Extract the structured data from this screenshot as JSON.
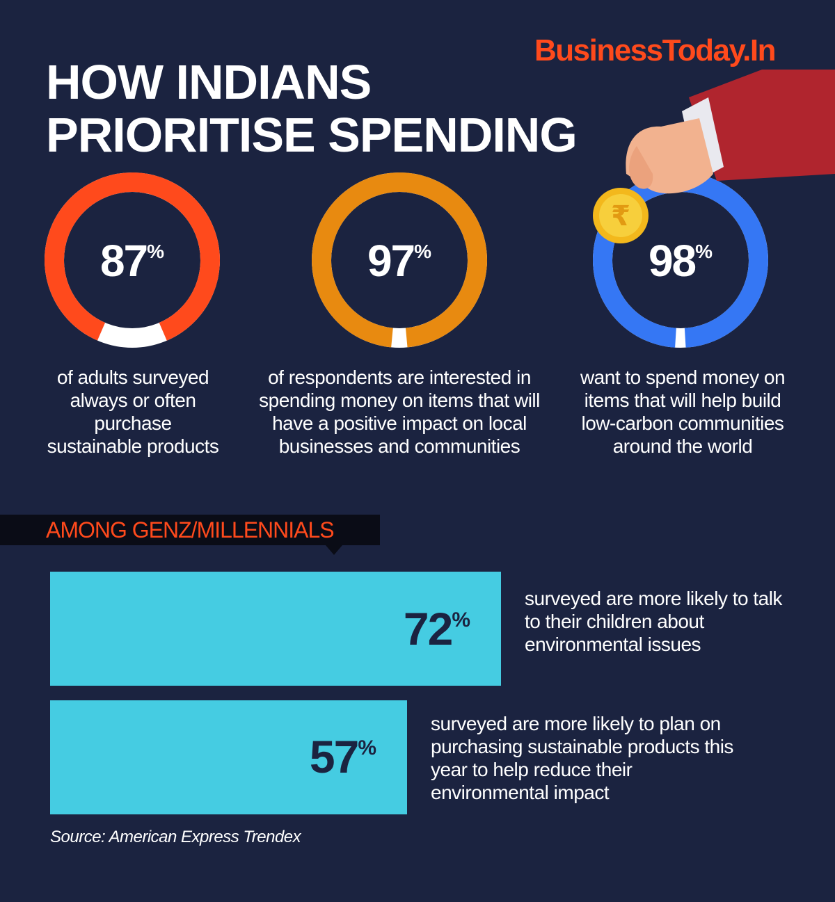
{
  "brand": "BusinessToday.In",
  "title_line1": "HOW INDIANS",
  "title_line2": "PRIORITISE SPENDING",
  "colors": {
    "background": "#1b2340",
    "ring_gap": "#ffffff",
    "bar": "#45cce2",
    "tag_text": "#ff4a1c"
  },
  "chart_data": [
    {
      "type": "pie",
      "values": [
        87,
        97,
        98
      ],
      "labels": [
        "87",
        "97",
        "98"
      ],
      "unit": "%",
      "captions": [
        "of adults surveyed always or often purchase sustainable products",
        "of respondents are interested in spending money on items that will have a positive impact on local businesses and communities",
        "want to spend money on items that will help build low-carbon communities around the world"
      ],
      "ring_colors": [
        "#ff4a1c",
        "#e88a10",
        "#3577f4"
      ]
    },
    {
      "type": "bar",
      "title": "AMONG GENZ/MILLENNIALS",
      "values": [
        72,
        57
      ],
      "labels": [
        "72",
        "57"
      ],
      "unit": "%",
      "captions": [
        "surveyed are more likely to talk to their children about environmental issues",
        "surveyed are more likely to plan on purchasing sustainable products this year to help reduce their environmental impact"
      ],
      "xlim": [
        0,
        100
      ]
    }
  ],
  "source": "Source: American Express Trendex",
  "icons": [
    "hand-with-rupee-coin-icon",
    "rupee-coin-icon"
  ]
}
